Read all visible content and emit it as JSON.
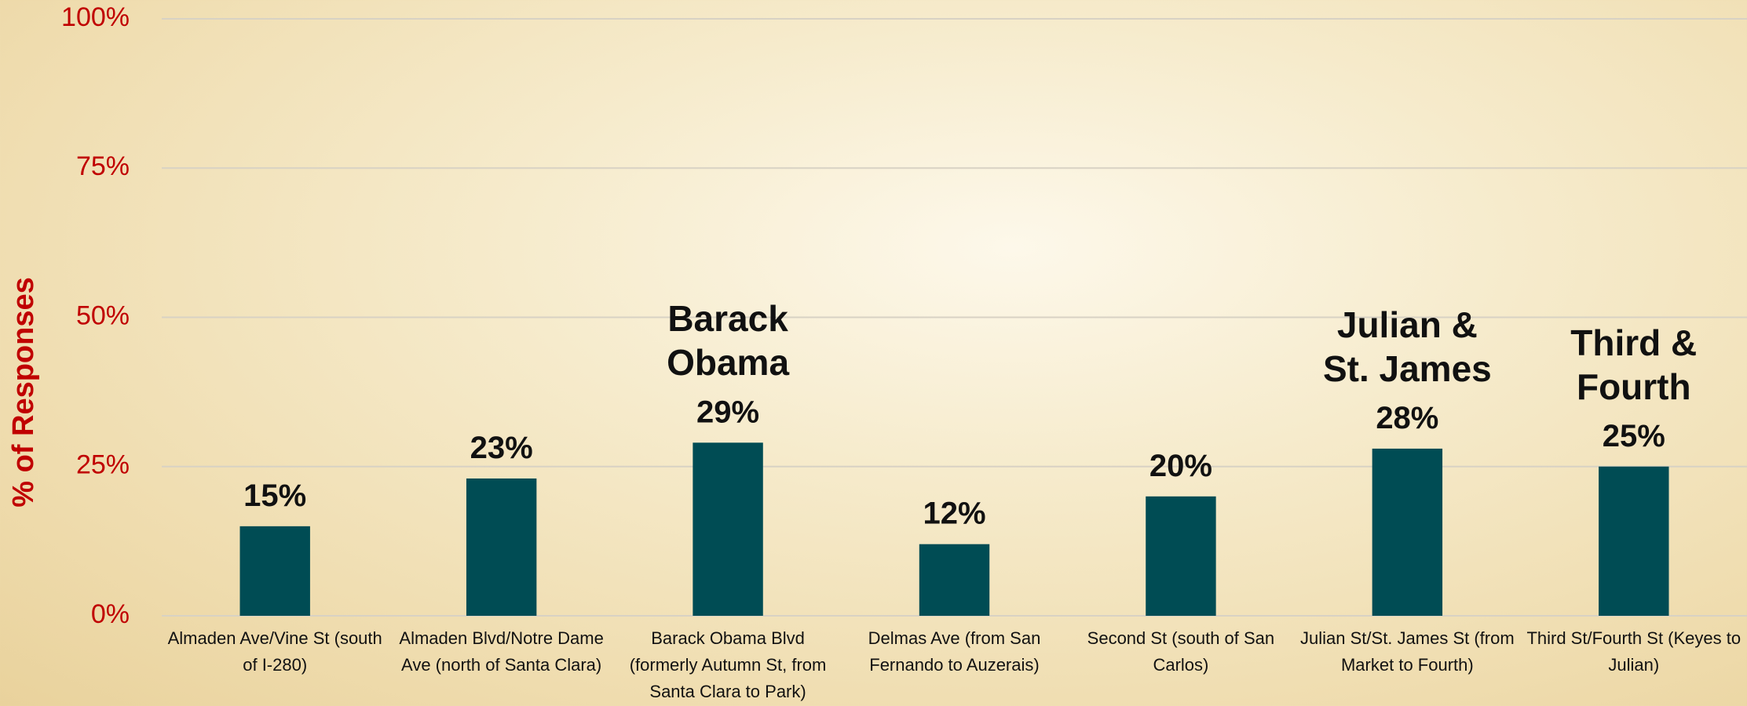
{
  "chart_data": {
    "type": "bar",
    "y_label": "% of Responses",
    "categories": [
      "Almaden Ave/Vine St (south of I-280)",
      "Almaden Blvd/Notre Dame Ave (north of Santa Clara)",
      "Barack Obama Blvd (formerly Autumn St, from Santa Clara to Park)",
      "Delmas Ave (from San Fernando to Auzerais)",
      "Second St (south of San Carlos)",
      "Julian St/St. James St (from Market to Fourth)",
      "Third St/Fourth St (Keyes to Julian)"
    ],
    "values": [
      15,
      23,
      29,
      12,
      20,
      28,
      25
    ],
    "value_labels": [
      "15%",
      "23%",
      "29%",
      "12%",
      "20%",
      "28%",
      "25%"
    ],
    "annotations": [
      null,
      null,
      "Barack\nObama",
      null,
      null,
      "Julian &\nSt. James",
      "Third &\nFourth"
    ],
    "color": "#004c54",
    "ylim": [
      0,
      100
    ],
    "yticks": [
      {
        "value": 0,
        "label": "0%"
      },
      {
        "value": 25,
        "label": "25%"
      },
      {
        "value": 50,
        "label": "50%"
      },
      {
        "value": 75,
        "label": "75%"
      },
      {
        "value": 100,
        "label": "100%"
      }
    ],
    "grid": true
  }
}
